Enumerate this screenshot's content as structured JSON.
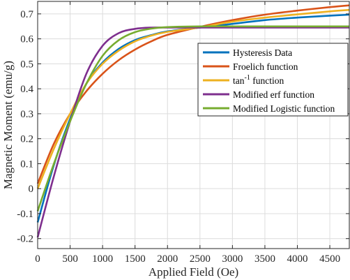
{
  "chart_data": {
    "type": "line",
    "title": "",
    "xlabel": "Applied Field (Oe)",
    "ylabel": "Magnetic Moment (emu/g)",
    "xlim": [
      0,
      4800
    ],
    "ylim": [
      -0.24,
      0.75
    ],
    "x_ticks": [
      0,
      500,
      1000,
      1500,
      2000,
      2500,
      3000,
      3500,
      4000,
      4500
    ],
    "y_ticks": [
      -0.2,
      -0.1,
      0,
      0.1,
      0.2,
      0.3,
      0.4,
      0.5,
      0.6,
      0.7
    ],
    "x_tick_labels": [
      "0",
      "500",
      "1000",
      "1500",
      "2000",
      "2500",
      "3000",
      "3500",
      "4000",
      "4500"
    ],
    "y_tick_labels": [
      "-0.2",
      "-0.1",
      "0",
      "0.1",
      "0.2",
      "0.3",
      "0.4",
      "0.5",
      "0.6",
      "0.7"
    ],
    "grid": true,
    "legend_position": "right",
    "series": [
      {
        "name": "Hysteresis Data",
        "color": "#0072BD",
        "x": [
          0,
          250,
          500,
          750,
          1000,
          1250,
          1500,
          1750,
          2000,
          2500,
          3000,
          3500,
          4000,
          4500,
          4800
        ],
        "y": [
          -0.135,
          0.095,
          0.28,
          0.42,
          0.505,
          0.56,
          0.595,
          0.615,
          0.63,
          0.645,
          0.66,
          0.675,
          0.685,
          0.693,
          0.697
        ]
      },
      {
        "name": "Froelich function",
        "color": "#D95319",
        "x": [
          0,
          250,
          500,
          750,
          1000,
          1250,
          1500,
          1750,
          2000,
          2500,
          3000,
          3500,
          4000,
          4500,
          4800
        ],
        "y": [
          0.02,
          0.18,
          0.3,
          0.39,
          0.46,
          0.515,
          0.557,
          0.59,
          0.616,
          0.648,
          0.675,
          0.697,
          0.713,
          0.727,
          0.734
        ]
      },
      {
        "name": "tan^-1 function",
        "color": "#EDB120",
        "x": [
          0,
          250,
          500,
          750,
          1000,
          1250,
          1500,
          1750,
          2000,
          2500,
          3000,
          3500,
          4000,
          4500,
          4800
        ],
        "y": [
          0.0,
          0.16,
          0.3,
          0.42,
          0.5,
          0.553,
          0.59,
          0.613,
          0.628,
          0.646,
          0.669,
          0.685,
          0.698,
          0.71,
          0.716
        ]
      },
      {
        "name": "Modified erf function",
        "color": "#7E2F8E",
        "x": [
          0,
          250,
          500,
          750,
          1000,
          1250,
          1500,
          1750,
          2000,
          2500,
          3000,
          3500,
          4000,
          4500,
          4800
        ],
        "y": [
          -0.195,
          0.05,
          0.27,
          0.46,
          0.572,
          0.623,
          0.64,
          0.645,
          0.645,
          0.645,
          0.645,
          0.645,
          0.645,
          0.645,
          0.645
        ]
      },
      {
        "name": "Modified Logistic function",
        "color": "#77AC30",
        "x": [
          0,
          250,
          500,
          750,
          1000,
          1250,
          1500,
          1750,
          2000,
          2500,
          3000,
          3500,
          4000,
          4500,
          4800
        ],
        "y": [
          -0.09,
          0.1,
          0.27,
          0.42,
          0.532,
          0.595,
          0.627,
          0.641,
          0.647,
          0.65,
          0.65,
          0.65,
          0.65,
          0.65,
          0.65
        ]
      }
    ],
    "legend_labels": [
      {
        "base": "Hysteresis Data",
        "sup": "",
        "rest": ""
      },
      {
        "base": "Froelich function",
        "sup": "",
        "rest": ""
      },
      {
        "base": "tan",
        "sup": "-1",
        "rest": " function"
      },
      {
        "base": "Modified erf function",
        "sup": "",
        "rest": ""
      },
      {
        "base": "Modified Logistic function",
        "sup": "",
        "rest": ""
      }
    ]
  }
}
